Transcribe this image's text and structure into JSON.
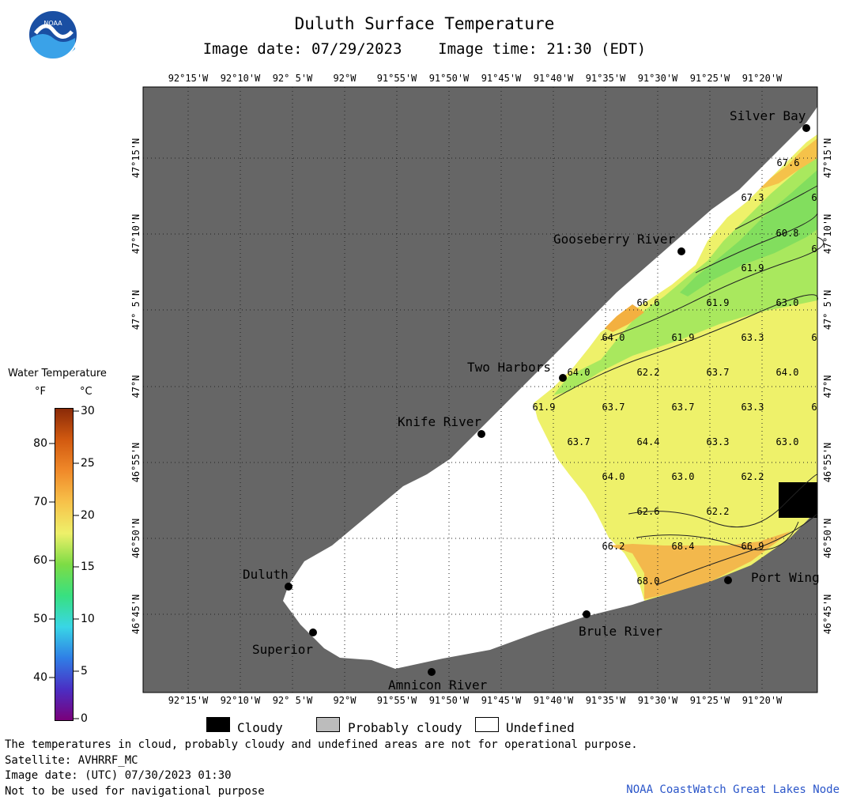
{
  "title": "Duluth Surface Temperature",
  "subtitle": "Image date: 07/29/2023    Image time: 21:30 (EDT)",
  "logo": {
    "text": "NOAA",
    "icon": "noaa-logo-icon"
  },
  "lon_labels": [
    "92°15'W",
    "92°10'W",
    "92° 5'W",
    "92°W",
    "91°55'W",
    "91°50'W",
    "91°45'W",
    "91°40'W",
    "91°35'W",
    "91°30'W",
    "91°25'W",
    "91°20'W"
  ],
  "lat_labels": [
    "47°15'N",
    "47°10'N",
    "47° 5'N",
    "47°N",
    "46°55'N",
    "46°50'N",
    "46°45'N"
  ],
  "towns": [
    {
      "name": "Silver Bay"
    },
    {
      "name": "Gooseberry River"
    },
    {
      "name": "Two Harbors"
    },
    {
      "name": "Knife River"
    },
    {
      "name": "Duluth"
    },
    {
      "name": "Superior"
    },
    {
      "name": "Amnicon River"
    },
    {
      "name": "Brule River"
    },
    {
      "name": "Port Wing"
    }
  ],
  "temperature_labels": [
    "67.6",
    "67.3",
    "60.8",
    "61.9",
    "66.6",
    "61.9",
    "63.0",
    "64.0",
    "61.9",
    "63.3",
    "64.0",
    "62.2",
    "63.7",
    "64.0",
    "61.9",
    "63.7",
    "63.7",
    "63.3",
    "63.7",
    "64.4",
    "63.3",
    "63.0",
    "64.0",
    "63.0",
    "62.2",
    "62.6",
    "62.2",
    "66.2",
    "68.4",
    "66.9",
    "68.0",
    "6",
    "6",
    "6",
    "6"
  ],
  "legend": {
    "title": "Water Temperature",
    "unit_f": "°F",
    "unit_c": "°C",
    "f_ticks": [
      "80",
      "70",
      "60",
      "50",
      "40"
    ],
    "c_ticks": [
      "30",
      "25",
      "20",
      "15",
      "10",
      "5",
      "0"
    ],
    "colors": [
      "#7a007a",
      "#4a2fc4",
      "#2f7fe6",
      "#39d6e6",
      "#38e080",
      "#7ddc45",
      "#eef06a",
      "#f7c24a",
      "#f08a2a",
      "#d25a10",
      "#8a2a08"
    ]
  },
  "key": [
    {
      "label": "Cloudy",
      "color": "#000000"
    },
    {
      "label": "Probably cloudy",
      "color": "#bcbcbc"
    },
    {
      "label": "Undefined",
      "color": "#ffffff"
    }
  ],
  "footer": {
    "disclaimer": "The temperatures in cloud, probably cloudy and undefined areas are not for operational purpose.",
    "satellite": "Satellite: AVHRRF_MC",
    "utc_date": "Image date: (UTC) 07/30/2023  01:30",
    "nav": "Not to be used for navigational purpose",
    "credit": "NOAA CoastWatch Great Lakes Node"
  },
  "colors": {
    "land": "#666666",
    "undefined_water": "#ffffff",
    "warm": "#f2b84b",
    "orange": "#f5a83a",
    "yellow": "#f1f46f",
    "light_green": "#c6ee6a",
    "green": "#86e063",
    "cloud": "#000000"
  }
}
